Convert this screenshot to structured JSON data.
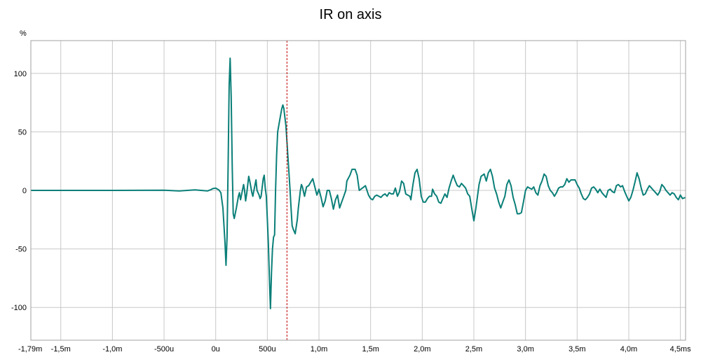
{
  "chart_data": {
    "type": "line",
    "title": "IR on axis",
    "ylabel": "%",
    "xlabel": "",
    "xlim": [
      -1.79,
      4.55
    ],
    "ylim": [
      -128,
      128
    ],
    "grid": true,
    "y_ticks": [
      {
        "value": 100,
        "label": "100"
      },
      {
        "value": 50,
        "label": "50"
      },
      {
        "value": 0,
        "label": "0"
      },
      {
        "value": -50,
        "label": "-50"
      },
      {
        "value": -100,
        "label": "-100"
      }
    ],
    "x_ticks": [
      {
        "value": -1.79,
        "label": "-1,79m"
      },
      {
        "value": -1.5,
        "label": "-1,5m"
      },
      {
        "value": -1.0,
        "label": "-1,0m"
      },
      {
        "value": -0.5,
        "label": "-500u"
      },
      {
        "value": 0,
        "label": "0u"
      },
      {
        "value": 0.5,
        "label": "500u"
      },
      {
        "value": 1.0,
        "label": "1,0m"
      },
      {
        "value": 1.5,
        "label": "1,5m"
      },
      {
        "value": 2.0,
        "label": "2,0m"
      },
      {
        "value": 2.5,
        "label": "2,5m"
      },
      {
        "value": 3.0,
        "label": "3,0m"
      },
      {
        "value": 3.5,
        "label": "3,5m"
      },
      {
        "value": 4.0,
        "label": "4,0m"
      },
      {
        "value": 4.5,
        "label": "4,5ms"
      }
    ],
    "marker_x": 0.69,
    "colors": {
      "line": "#0a7f78",
      "marker": "#c00000",
      "grid": "#c8c8c8",
      "frame": "#a0a0a0"
    },
    "series": [
      {
        "points": [
          [
            -1.79,
            0
          ],
          [
            -1.4,
            0
          ],
          [
            -1.0,
            0
          ],
          [
            -0.5,
            0.2
          ],
          [
            -0.35,
            -0.5
          ],
          [
            -0.2,
            0.5
          ],
          [
            -0.08,
            -0.5
          ],
          [
            -0.05,
            0.5
          ],
          [
            -0.03,
            1.5
          ],
          [
            0.0,
            2
          ],
          [
            0.03,
            0.5
          ],
          [
            0.05,
            -2
          ],
          [
            0.07,
            -15
          ],
          [
            0.09,
            -45
          ],
          [
            0.1,
            -64
          ],
          [
            0.11,
            -40
          ],
          [
            0.12,
            20
          ],
          [
            0.13,
            90
          ],
          [
            0.14,
            113
          ],
          [
            0.15,
            80
          ],
          [
            0.16,
            20
          ],
          [
            0.17,
            -20
          ],
          [
            0.18,
            -24
          ],
          [
            0.2,
            -15
          ],
          [
            0.22,
            -5
          ],
          [
            0.23,
            -2
          ],
          [
            0.24,
            -8
          ],
          [
            0.25,
            -4
          ],
          [
            0.27,
            5
          ],
          [
            0.28,
            0
          ],
          [
            0.29,
            -9
          ],
          [
            0.3,
            -3
          ],
          [
            0.32,
            12
          ],
          [
            0.33,
            8
          ],
          [
            0.35,
            -2
          ],
          [
            0.36,
            -5
          ],
          [
            0.37,
            0
          ],
          [
            0.39,
            9
          ],
          [
            0.4,
            0
          ],
          [
            0.42,
            -4
          ],
          [
            0.43,
            -7
          ],
          [
            0.44,
            -5
          ],
          [
            0.46,
            10
          ],
          [
            0.47,
            13
          ],
          [
            0.48,
            2
          ],
          [
            0.49,
            -5
          ],
          [
            0.5,
            -25
          ],
          [
            0.51,
            -45
          ],
          [
            0.52,
            -75
          ],
          [
            0.53,
            -101
          ],
          [
            0.54,
            -70
          ],
          [
            0.55,
            -50
          ],
          [
            0.56,
            -40
          ],
          [
            0.57,
            -38
          ],
          [
            0.58,
            0
          ],
          [
            0.59,
            30
          ],
          [
            0.6,
            50
          ],
          [
            0.62,
            60
          ],
          [
            0.64,
            70
          ],
          [
            0.65,
            73
          ],
          [
            0.66,
            70
          ],
          [
            0.68,
            55
          ],
          [
            0.7,
            28
          ],
          [
            0.72,
            0
          ],
          [
            0.73,
            -15
          ],
          [
            0.74,
            -30
          ],
          [
            0.75,
            -33
          ],
          [
            0.77,
            -37
          ],
          [
            0.79,
            -25
          ],
          [
            0.8,
            -15
          ],
          [
            0.82,
            0
          ],
          [
            0.83,
            5
          ],
          [
            0.84,
            3
          ],
          [
            0.86,
            -5
          ],
          [
            0.88,
            3
          ],
          [
            0.9,
            4
          ],
          [
            0.92,
            7
          ],
          [
            0.94,
            10
          ],
          [
            0.96,
            3
          ],
          [
            0.98,
            -4
          ],
          [
            1.0,
            1
          ],
          [
            1.02,
            -6
          ],
          [
            1.04,
            -14
          ],
          [
            1.06,
            -9
          ],
          [
            1.08,
            0
          ],
          [
            1.1,
            0
          ],
          [
            1.12,
            -7
          ],
          [
            1.14,
            -16
          ],
          [
            1.16,
            -8
          ],
          [
            1.18,
            -4
          ],
          [
            1.2,
            -15
          ],
          [
            1.22,
            -10
          ],
          [
            1.24,
            -5
          ],
          [
            1.26,
            0
          ],
          [
            1.27,
            8
          ],
          [
            1.3,
            13
          ],
          [
            1.32,
            18
          ],
          [
            1.35,
            18
          ],
          [
            1.37,
            13
          ],
          [
            1.39,
            0
          ],
          [
            1.42,
            2
          ],
          [
            1.45,
            4
          ],
          [
            1.48,
            -4
          ],
          [
            1.5,
            -7
          ],
          [
            1.52,
            -8
          ],
          [
            1.54,
            -5
          ],
          [
            1.56,
            -4
          ],
          [
            1.58,
            -5
          ],
          [
            1.6,
            -6
          ],
          [
            1.62,
            -4
          ],
          [
            1.64,
            -3
          ],
          [
            1.66,
            -5
          ],
          [
            1.68,
            -2
          ],
          [
            1.7,
            -3
          ],
          [
            1.72,
            -3
          ],
          [
            1.74,
            2
          ],
          [
            1.76,
            -5
          ],
          [
            1.78,
            -1
          ],
          [
            1.8,
            8
          ],
          [
            1.82,
            6
          ],
          [
            1.84,
            -3
          ],
          [
            1.86,
            -4
          ],
          [
            1.88,
            -5
          ],
          [
            1.89,
            -8
          ],
          [
            1.91,
            5
          ],
          [
            1.93,
            15
          ],
          [
            1.95,
            18
          ],
          [
            1.97,
            10
          ],
          [
            1.99,
            -5
          ],
          [
            2.01,
            -10
          ],
          [
            2.03,
            -10
          ],
          [
            2.05,
            -7
          ],
          [
            2.07,
            -5
          ],
          [
            2.09,
            -5
          ],
          [
            2.1,
            1
          ],
          [
            2.12,
            -3
          ],
          [
            2.14,
            -5
          ],
          [
            2.16,
            -10
          ],
          [
            2.18,
            -11
          ],
          [
            2.2,
            -7
          ],
          [
            2.22,
            -3
          ],
          [
            2.24,
            -6
          ],
          [
            2.26,
            2
          ],
          [
            2.28,
            8
          ],
          [
            2.3,
            13
          ],
          [
            2.32,
            8
          ],
          [
            2.34,
            4
          ],
          [
            2.36,
            3
          ],
          [
            2.38,
            6
          ],
          [
            2.4,
            4
          ],
          [
            2.42,
            2
          ],
          [
            2.44,
            -3
          ],
          [
            2.46,
            -5
          ],
          [
            2.48,
            -16
          ],
          [
            2.5,
            -26
          ],
          [
            2.52,
            -15
          ],
          [
            2.55,
            5
          ],
          [
            2.57,
            12
          ],
          [
            2.6,
            14
          ],
          [
            2.62,
            8
          ],
          [
            2.64,
            15
          ],
          [
            2.66,
            18
          ],
          [
            2.68,
            12
          ],
          [
            2.7,
            2
          ],
          [
            2.72,
            -3
          ],
          [
            2.74,
            -10
          ],
          [
            2.76,
            -15
          ],
          [
            2.78,
            -10
          ],
          [
            2.8,
            -5
          ],
          [
            2.82,
            5
          ],
          [
            2.84,
            9
          ],
          [
            2.86,
            4
          ],
          [
            2.88,
            -6
          ],
          [
            2.9,
            -12
          ],
          [
            2.92,
            -20
          ],
          [
            2.94,
            -20
          ],
          [
            2.96,
            -19
          ],
          [
            2.98,
            -10
          ],
          [
            3.0,
            0
          ],
          [
            3.02,
            3
          ],
          [
            3.04,
            2
          ],
          [
            3.06,
            1
          ],
          [
            3.08,
            3
          ],
          [
            3.1,
            -2
          ],
          [
            3.12,
            -4
          ],
          [
            3.14,
            4
          ],
          [
            3.16,
            8
          ],
          [
            3.18,
            14
          ],
          [
            3.2,
            12
          ],
          [
            3.22,
            4
          ],
          [
            3.24,
            0
          ],
          [
            3.26,
            -2
          ],
          [
            3.28,
            -5
          ],
          [
            3.3,
            -2
          ],
          [
            3.32,
            2
          ],
          [
            3.34,
            3
          ],
          [
            3.36,
            3
          ],
          [
            3.38,
            5
          ],
          [
            3.4,
            10
          ],
          [
            3.42,
            7
          ],
          [
            3.44,
            9
          ],
          [
            3.46,
            9
          ],
          [
            3.48,
            9
          ],
          [
            3.5,
            5
          ],
          [
            3.52,
            2
          ],
          [
            3.54,
            -3
          ],
          [
            3.56,
            -7
          ],
          [
            3.58,
            -8
          ],
          [
            3.6,
            -6
          ],
          [
            3.62,
            -3
          ],
          [
            3.64,
            2
          ],
          [
            3.66,
            3
          ],
          [
            3.68,
            1
          ],
          [
            3.7,
            -2
          ],
          [
            3.72,
            1
          ],
          [
            3.74,
            -2
          ],
          [
            3.76,
            -4
          ],
          [
            3.78,
            -6
          ],
          [
            3.8,
            0
          ],
          [
            3.82,
            1
          ],
          [
            3.84,
            -1
          ],
          [
            3.86,
            -2
          ],
          [
            3.88,
            4
          ],
          [
            3.9,
            5
          ],
          [
            3.92,
            3
          ],
          [
            3.94,
            4
          ],
          [
            3.96,
            -1
          ],
          [
            3.98,
            -5
          ],
          [
            4.0,
            -9
          ],
          [
            4.02,
            -6
          ],
          [
            4.04,
            0
          ],
          [
            4.06,
            7
          ],
          [
            4.08,
            15
          ],
          [
            4.1,
            10
          ],
          [
            4.12,
            2
          ],
          [
            4.14,
            -4
          ],
          [
            4.16,
            -3
          ],
          [
            4.18,
            1
          ],
          [
            4.2,
            4
          ],
          [
            4.22,
            2
          ],
          [
            4.24,
            0
          ],
          [
            4.26,
            -2
          ],
          [
            4.28,
            -4
          ],
          [
            4.3,
            -1
          ],
          [
            4.32,
            5
          ],
          [
            4.34,
            3
          ],
          [
            4.36,
            0
          ],
          [
            4.38,
            -2
          ],
          [
            4.4,
            -4
          ],
          [
            4.42,
            -2
          ],
          [
            4.44,
            -3
          ],
          [
            4.46,
            -6
          ],
          [
            4.48,
            -8
          ],
          [
            4.5,
            -4
          ],
          [
            4.52,
            -7
          ],
          [
            4.55,
            -6
          ]
        ]
      }
    ]
  }
}
